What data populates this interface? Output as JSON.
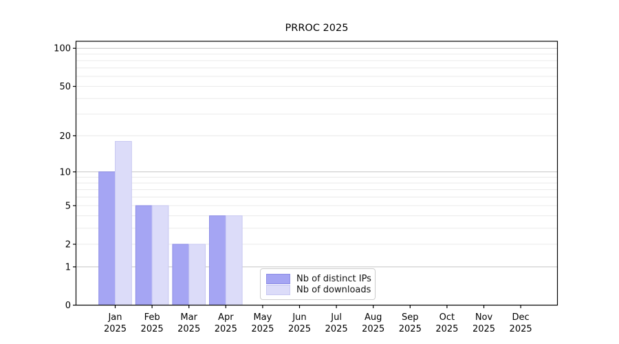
{
  "chart_data": {
    "type": "bar",
    "title": "PRROC 2025",
    "categories": [
      "Jan",
      "Feb",
      "Mar",
      "Apr",
      "May",
      "Jun",
      "Jul",
      "Aug",
      "Sep",
      "Oct",
      "Nov",
      "Dec"
    ],
    "year_label": "2025",
    "series": [
      {
        "name": "Nb of distinct IPs",
        "color": "#a5a5f3",
        "edge_color": "#8e8ee6",
        "values": [
          10,
          5,
          2,
          4,
          0,
          0,
          0,
          0,
          0,
          0,
          0,
          0
        ]
      },
      {
        "name": "Nb of downloads",
        "color": "#dcdcf9",
        "edge_color": "#c8c8f2",
        "values": [
          18,
          5,
          2,
          4,
          0,
          0,
          0,
          0,
          0,
          0,
          0,
          0
        ]
      }
    ],
    "yticks": [
      100,
      50,
      20,
      10,
      5,
      2,
      1,
      0
    ],
    "major_gridlines": [
      1,
      10,
      100
    ],
    "minor_gridlines": [
      2,
      3,
      4,
      5,
      6,
      7,
      8,
      9,
      20,
      30,
      40,
      50,
      60,
      70,
      80,
      90
    ],
    "scale": "log1p",
    "ylim": [
      0,
      100
    ],
    "grid": true,
    "legend_position": "lower center"
  },
  "colors": {
    "background": "#ffffff",
    "spine": "#000000",
    "major_grid": "#c3c3c3",
    "minor_grid": "#eaeaea",
    "tick_text": "#000000",
    "legend_border": "#cccccc"
  }
}
